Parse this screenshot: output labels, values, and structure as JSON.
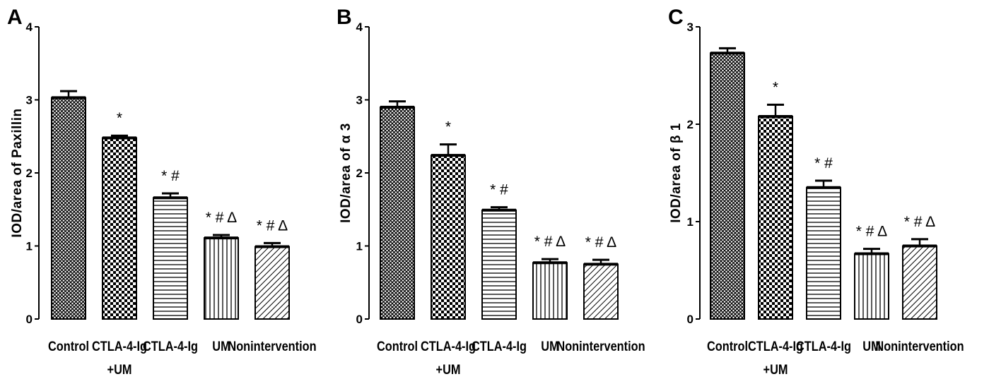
{
  "chart_data": [
    {
      "panel": "A",
      "type": "bar",
      "ylabel": "IOD/area of Paxillin",
      "ylim": [
        0,
        4
      ],
      "yticks": [
        "0",
        "1",
        "2",
        "3",
        "4"
      ],
      "categories": [
        "Control",
        "CTLA-4-Ig\n+UM",
        "CTLA-4-Ig",
        "UM",
        "Nonintervention"
      ],
      "values": [
        3.03,
        2.48,
        1.66,
        1.11,
        0.99
      ],
      "errors": [
        0.09,
        0.03,
        0.06,
        0.04,
        0.05
      ],
      "annotations": [
        "",
        "*",
        "* #",
        "* # Δ",
        "* # Δ"
      ],
      "patterns": [
        "crosshatch",
        "checker",
        "horizontal",
        "vertical",
        "diagonal"
      ]
    },
    {
      "panel": "B",
      "type": "bar",
      "ylabel": "IOD/area of α 3",
      "ylim": [
        0,
        4
      ],
      "yticks": [
        "0",
        "1",
        "2",
        "3",
        "4"
      ],
      "categories": [
        "Control",
        "CTLA-4-Ig\n+UM",
        "CTLA-4-Ig",
        "UM",
        "Nonintervention"
      ],
      "values": [
        2.9,
        2.24,
        1.49,
        0.77,
        0.75
      ],
      "errors": [
        0.08,
        0.15,
        0.04,
        0.05,
        0.06
      ],
      "annotations": [
        "",
        "*",
        "* #",
        "* # Δ",
        "* # Δ"
      ],
      "patterns": [
        "crosshatch",
        "checker",
        "horizontal",
        "vertical",
        "diagonal"
      ]
    },
    {
      "panel": "C",
      "type": "bar",
      "ylabel": "IOD/area of β 1",
      "ylim": [
        0,
        3
      ],
      "yticks": [
        "0",
        "1",
        "2",
        "3"
      ],
      "categories": [
        "Control",
        "CTLA-4-Ig\n+UM",
        "CTLA-4-Ig",
        "UM",
        "Nonintervention"
      ],
      "values": [
        2.73,
        2.08,
        1.35,
        0.67,
        0.75
      ],
      "errors": [
        0.05,
        0.12,
        0.07,
        0.05,
        0.07
      ],
      "annotations": [
        "",
        "*",
        "* #",
        "* # Δ",
        "* # Δ"
      ],
      "patterns": [
        "crosshatch",
        "checker",
        "horizontal",
        "vertical",
        "diagonal"
      ]
    }
  ]
}
